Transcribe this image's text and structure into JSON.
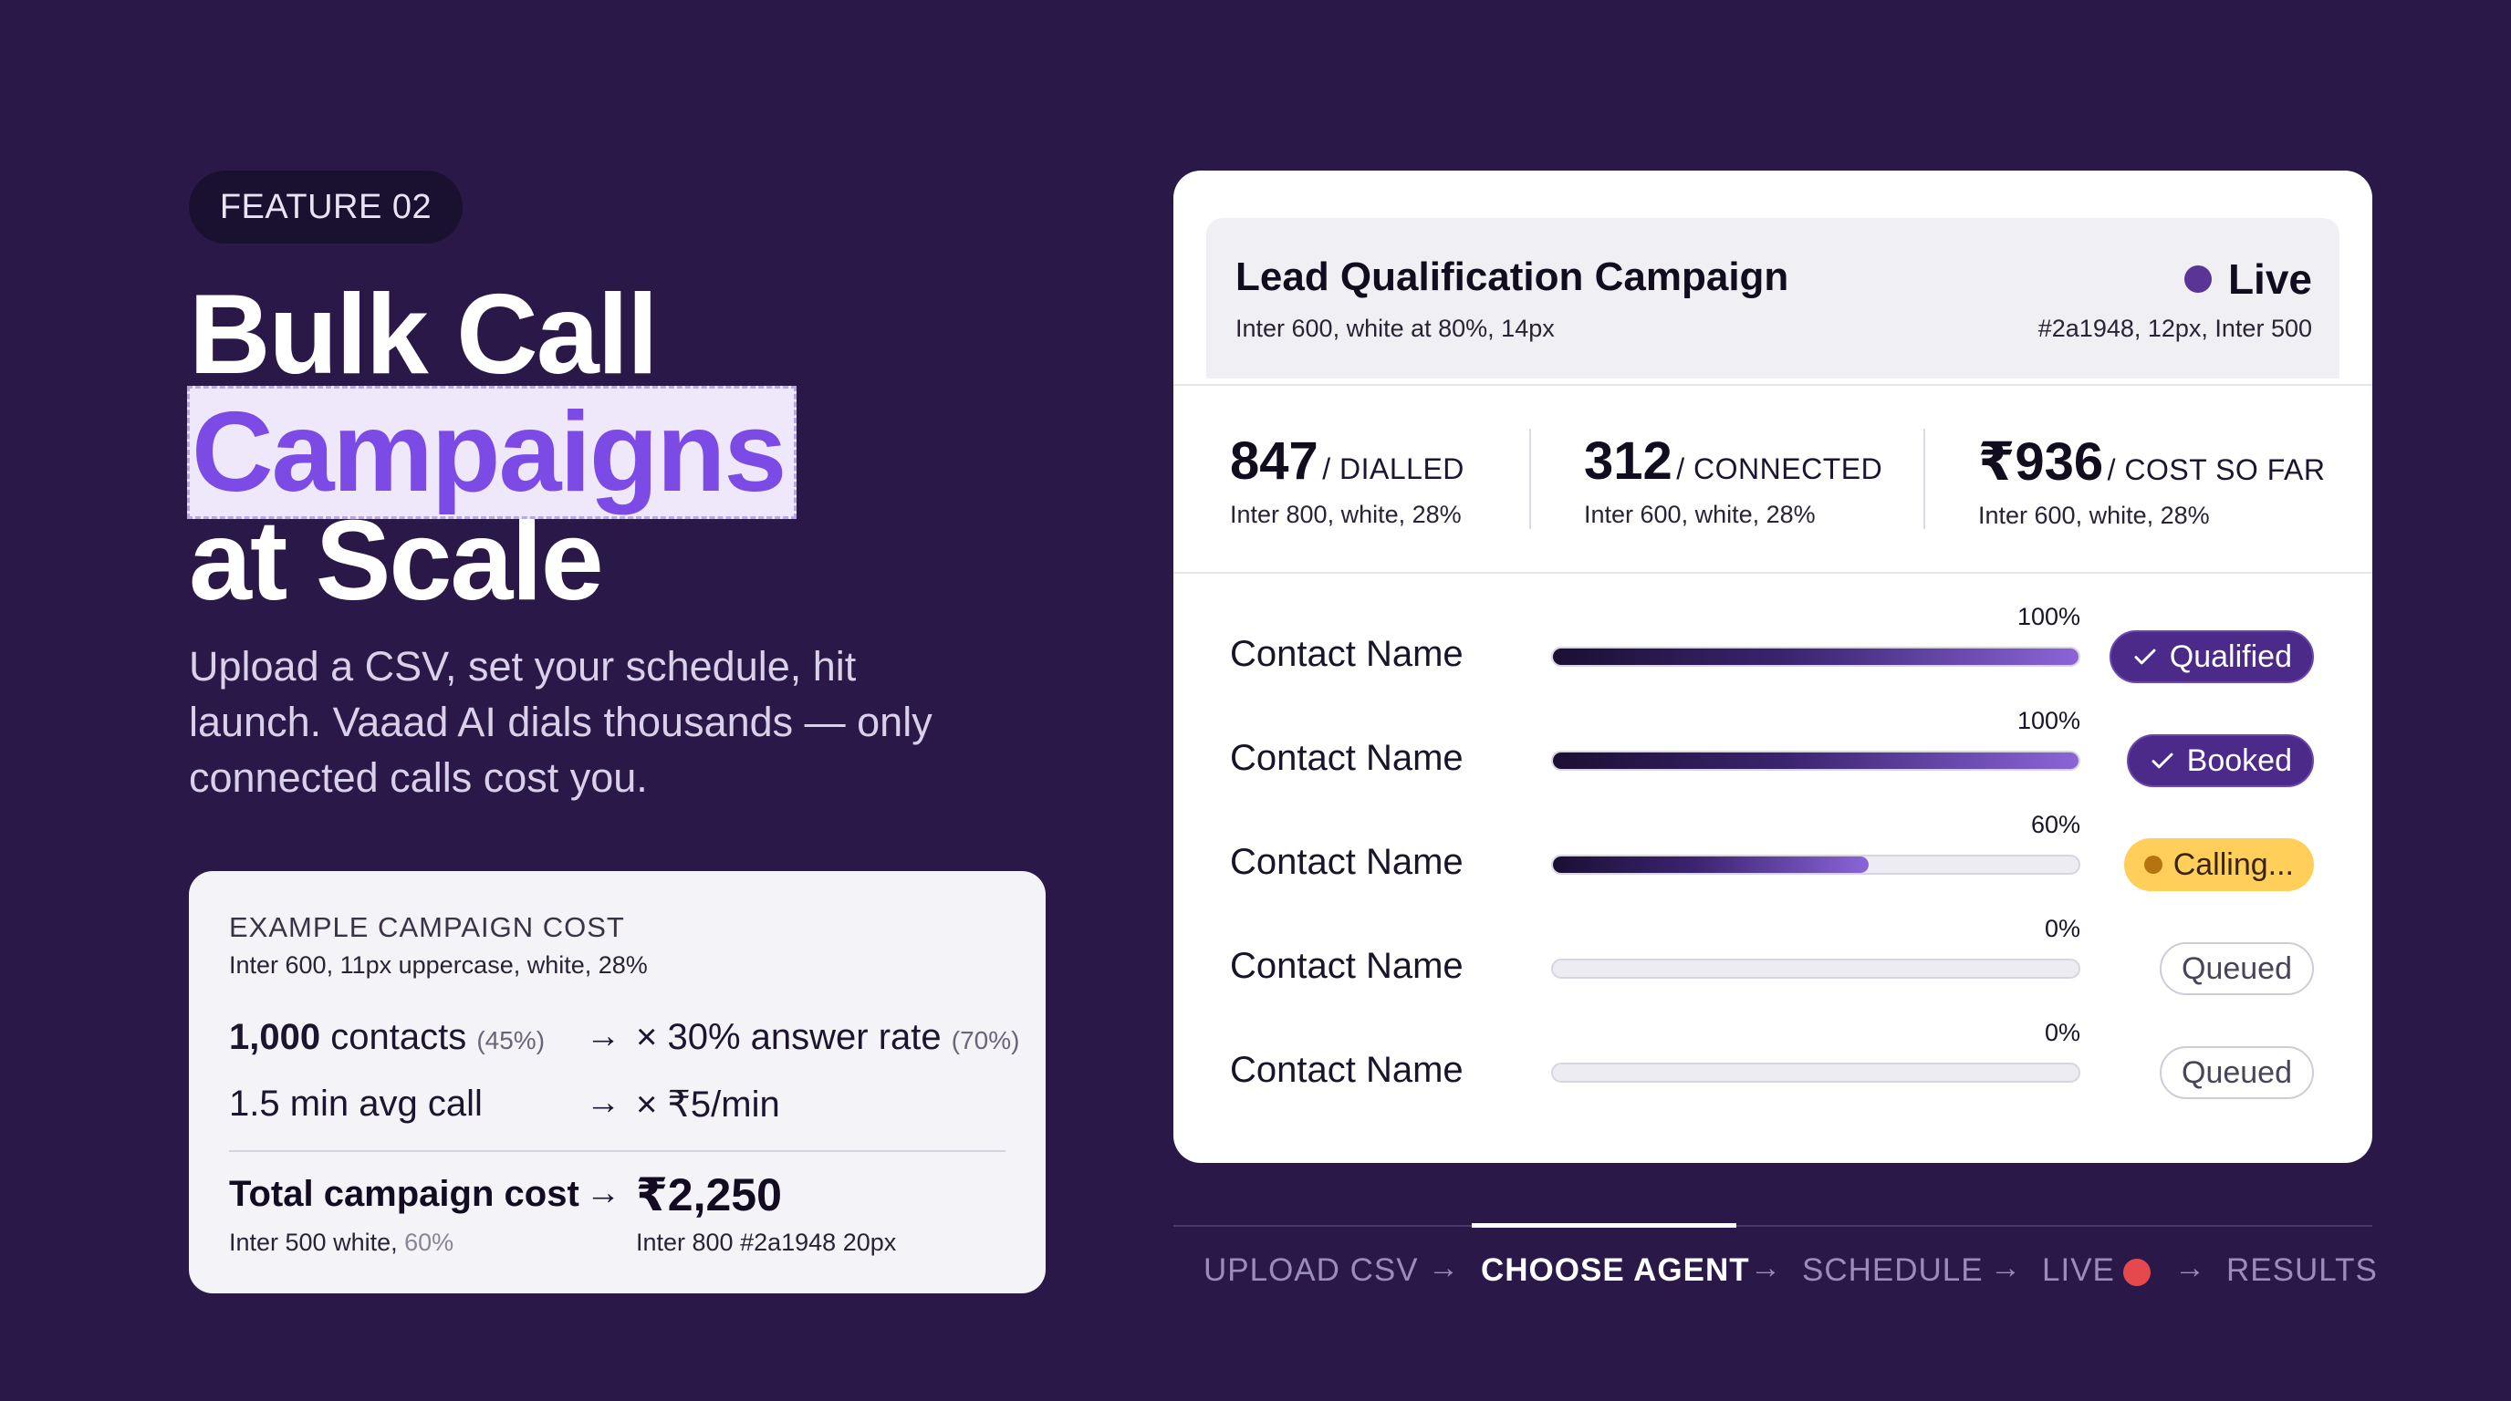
{
  "feature_badge": "FEATURE 02",
  "headline": {
    "line1": "Bulk Call",
    "accent": "Campaigns",
    "line3": "at Scale"
  },
  "subtitle": "Upload a CSV, set your schedule, hit launch. Vaaad AI dials thousands — only connected calls cost you.",
  "cost_card": {
    "title": "EXAMPLE CAMPAIGN COST",
    "note": "Inter 600, 11px uppercase, white, 28%",
    "row1": {
      "contacts_value": "1,000",
      "contacts_label": "contacts",
      "contacts_muted": "(45%)",
      "arrow": "→",
      "rate": "× 30% answer rate",
      "rate_muted": "(70%)"
    },
    "row2": {
      "avg": "1.5 min avg call",
      "arrow": "→",
      "price": "× ₹5/min"
    },
    "total_label": "Total campaign cost",
    "total_arrow": "→",
    "total_value": "₹2,250",
    "total_note_left": "Inter 500 white,",
    "total_note_left_muted": "60%",
    "total_note_right": "Inter 800 #2a1948 20px"
  },
  "panel": {
    "title": "Lead Qualification Campaign",
    "title_note": "Inter 600, white at 80%, 14px",
    "status": "Live",
    "status_note": "#2a1948, 12px, Inter 500",
    "stats": [
      {
        "value": "847",
        "unit": "/ DIALLED",
        "note": "Inter 800, white, 28%"
      },
      {
        "value": "312",
        "unit": "/ CONNECTED",
        "note": "Inter 600, white, 28%"
      },
      {
        "value": "₹936",
        "unit": "/ COST SO FAR",
        "note": "Inter 600, white, 28%"
      }
    ],
    "contacts": [
      {
        "name": "Contact Name",
        "pct_label": "100%",
        "progress": 1.0,
        "status": "Qualified",
        "style": "purple",
        "icon": "check-icon"
      },
      {
        "name": "Contact Name",
        "pct_label": "100%",
        "progress": 1.0,
        "status": "Booked",
        "style": "purple",
        "icon": "check-icon"
      },
      {
        "name": "Contact Name",
        "pct_label": "60%",
        "progress": 0.6,
        "status": "Calling...",
        "style": "yellow",
        "icon": "dot-icon"
      },
      {
        "name": "Contact Name",
        "pct_label": "0%",
        "progress": 0.0,
        "status": "Queued",
        "style": "outline",
        "icon": ""
      },
      {
        "name": "Contact Name",
        "pct_label": "0%",
        "progress": 0.0,
        "status": "Queued",
        "style": "outline",
        "icon": ""
      }
    ]
  },
  "stepper": {
    "steps": [
      "UPLOAD CSV",
      "CHOOSE AGENT",
      "SCHEDULE",
      "LIVE",
      "RESULTS"
    ],
    "arrow": "→",
    "active": "CHOOSE AGENT"
  },
  "colors": {
    "background": "#2a1948",
    "accent": "#7c4be6",
    "pill_purple": "#4b2a8a",
    "pill_yellow": "#ffcf5a",
    "live_red": "#e5484d"
  }
}
